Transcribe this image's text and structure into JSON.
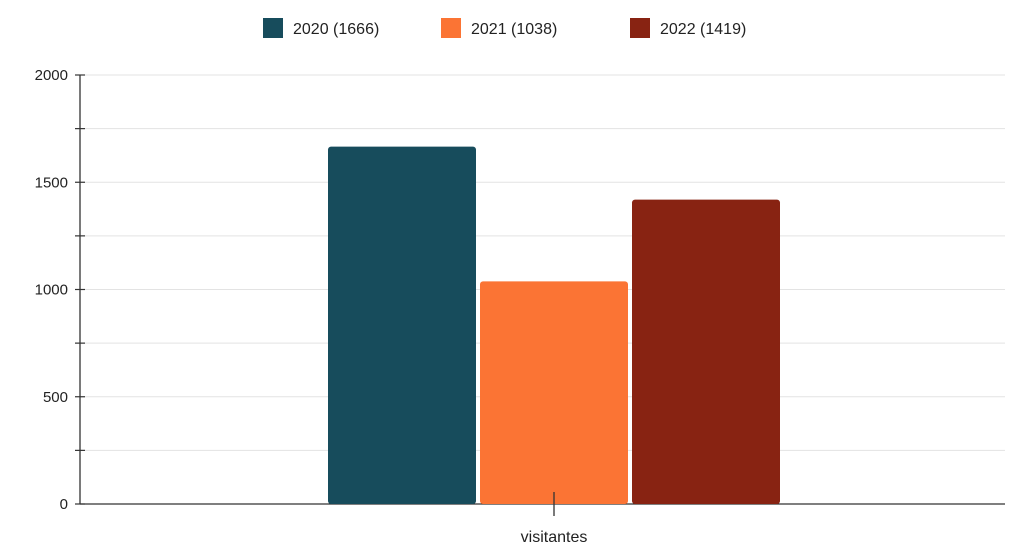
{
  "chart_data": {
    "type": "bar",
    "categories": [
      "visitantes"
    ],
    "series": [
      {
        "name": "2020 (1666)",
        "values": [
          1666
        ],
        "color": "#174c5c"
      },
      {
        "name": "2021 (1038)",
        "values": [
          1038
        ],
        "color": "#fb7434"
      },
      {
        "name": "2022 (1419)",
        "values": [
          1419
        ],
        "color": "#882312"
      }
    ],
    "ylim": [
      0,
      2000
    ],
    "y_ticks": [
      "0",
      "500",
      "1000",
      "1500",
      "2000"
    ],
    "y_tick_values": [
      0,
      500,
      1000,
      1500,
      2000
    ],
    "grid": true,
    "legend_position": "top-center",
    "title": "",
    "xlabel": "",
    "ylabel": ""
  }
}
